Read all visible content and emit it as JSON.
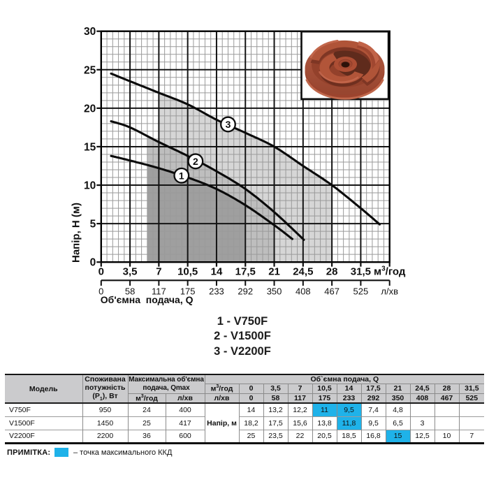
{
  "page": {
    "background": "#ffffff"
  },
  "chart_data": {
    "type": "line",
    "title": "",
    "y_axis": {
      "title": "Напір, Н (м)",
      "ticks": [
        0,
        5,
        10,
        15,
        20,
        25,
        30
      ],
      "max": 30,
      "major_step": 5,
      "minor_step": 1
    },
    "x_axis": {
      "title": "Об'ємна  подача, Q",
      "max": 35,
      "major_step": 3.5,
      "minor_step": 0.7,
      "primary_tick_labels": [
        "0",
        "3,5",
        "7",
        "10,5",
        "14",
        "17,5",
        "21",
        "24,5",
        "28",
        "31,5"
      ],
      "primary_unit": {
        "base": "м",
        "sup": "3",
        "rest": "/год"
      },
      "secondary_tick_labels": [
        "0",
        "58",
        "117",
        "175",
        "233",
        "292",
        "350",
        "408",
        "467",
        "525"
      ],
      "secondary_unit": "л/хв"
    },
    "series": [
      {
        "badge": "1",
        "name": "V750F",
        "points": [
          [
            1.2,
            13.8
          ],
          [
            3.5,
            13.2
          ],
          [
            7,
            12.2
          ],
          [
            10.5,
            11
          ],
          [
            14,
            9.5
          ],
          [
            17.5,
            7.4
          ],
          [
            21,
            4.8
          ],
          [
            23.2,
            3.0
          ]
        ],
        "badge_pos": [
          9.75,
          11.25
        ]
      },
      {
        "badge": "2",
        "name": "V1500F",
        "points": [
          [
            1.2,
            18.3
          ],
          [
            3.5,
            17.5
          ],
          [
            7,
            15.6
          ],
          [
            10.5,
            13.8
          ],
          [
            14,
            11.8
          ],
          [
            17.5,
            9.5
          ],
          [
            21,
            6.5
          ],
          [
            24.6,
            2.9
          ]
        ],
        "badge_pos": [
          11.45,
          13.1
        ]
      },
      {
        "badge": "3",
        "name": "V2200F",
        "points": [
          [
            1.2,
            24.5
          ],
          [
            3.5,
            23.5
          ],
          [
            7,
            22
          ],
          [
            10.5,
            20.5
          ],
          [
            14,
            18.5
          ],
          [
            17.5,
            16.8
          ],
          [
            21,
            15
          ],
          [
            24.5,
            12.5
          ],
          [
            28,
            10
          ],
          [
            31.5,
            7
          ],
          [
            33.8,
            4.9
          ]
        ],
        "badge_pos": [
          15.4,
          17.9
        ]
      }
    ],
    "regions": [
      {
        "series": 2,
        "from": 7,
        "to": 28,
        "color": "#d6d6d6"
      },
      {
        "series": 1,
        "from": 5.6,
        "to": 21,
        "color": "#bebebe"
      },
      {
        "series": 0,
        "from": 5.6,
        "to": 17.5,
        "color": "#9f9f9f"
      }
    ],
    "grid": {
      "minor_color": "#9a9a9a",
      "major_color": "#141414",
      "border_color": "#000000"
    }
  },
  "legend": {
    "items": [
      "1 - V750F",
      "2 - V1500F",
      "3 - V2200F"
    ]
  },
  "table": {
    "model_header": "Модель",
    "power_header_lines": [
      "Споживана",
      "потужність"
    ],
    "power_header_sub": {
      "pre": "(P",
      "sub": "1",
      "post": "), Вт"
    },
    "qmax_header_lines": [
      "Максимальна об'ємна",
      "подача, Qmax"
    ],
    "m3h_label": {
      "base": "м",
      "sup": "3",
      "rest": "/год"
    },
    "lmin_label": "л/хв",
    "flow_header": "Об`ємна подача, Q",
    "head_label": "Напір, м",
    "m3h_ticks": [
      "0",
      "3,5",
      "7",
      "10,5",
      "14",
      "17,5",
      "21",
      "24,5",
      "28",
      "31,5"
    ],
    "lmin_ticks": [
      "0",
      "58",
      "117",
      "175",
      "233",
      "292",
      "350",
      "408",
      "467",
      "525"
    ],
    "rows": [
      {
        "model": "V750F",
        "power": "950",
        "qmax_m3h": "24",
        "qmax_lmin": "400",
        "values": [
          "14",
          "13,2",
          "12,2",
          "11",
          "9,5",
          "7,4",
          "4,8",
          "",
          "",
          ""
        ],
        "highlight": [
          3,
          4
        ]
      },
      {
        "model": "V1500F",
        "power": "1450",
        "qmax_m3h": "25",
        "qmax_lmin": "417",
        "values": [
          "18,2",
          "17,5",
          "15,6",
          "13,8",
          "11,8",
          "9,5",
          "6,5",
          "3",
          "",
          ""
        ],
        "highlight": [
          4
        ]
      },
      {
        "model": "V2200F",
        "power": "2200",
        "qmax_m3h": "36",
        "qmax_lmin": "600",
        "values": [
          "25",
          "23,5",
          "22",
          "20,5",
          "18,5",
          "16,8",
          "15",
          "12,5",
          "10",
          "7"
        ],
        "highlight": [
          6
        ]
      }
    ],
    "highlight_color": "#1fb2e9"
  },
  "note": {
    "label": "ПРИМІТКА:",
    "text": "– точка максимального ККД",
    "swatch_color": "#1fb2e9"
  }
}
